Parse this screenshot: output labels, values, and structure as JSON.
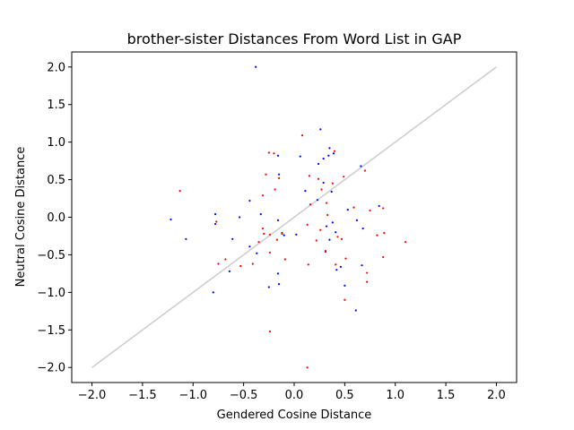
{
  "chart_data": {
    "type": "scatter",
    "title": "brother-sister Distances From Word List in GAP",
    "xlabel": "Gendered Cosine Distance",
    "ylabel": "Neutral Cosine Distance",
    "xlim": [
      -2.2,
      2.2
    ],
    "ylim": [
      -2.2,
      2.2
    ],
    "xticks": [
      "−2.0",
      "−1.5",
      "−1.0",
      "−0.5",
      "0.0",
      "0.5",
      "1.0",
      "1.5",
      "2.0"
    ],
    "yticks": [
      "−2.0",
      "−1.5",
      "−1.0",
      "−0.5",
      "0.0",
      "0.5",
      "1.0",
      "1.5",
      "2.0"
    ],
    "grid": false,
    "reference_line": {
      "x": [
        -2.0,
        2.0
      ],
      "y": [
        -2.0,
        2.0
      ],
      "color": "#cccccc"
    },
    "series": [
      {
        "color": "#0000ff",
        "points": [
          [
            -0.38,
            2.0
          ],
          [
            0.26,
            1.17
          ],
          [
            0.35,
            0.92
          ],
          [
            0.39,
            0.85
          ],
          [
            0.29,
            0.78
          ],
          [
            0.24,
            0.71
          ],
          [
            0.34,
            0.82
          ],
          [
            0.66,
            0.68
          ],
          [
            0.06,
            0.81
          ],
          [
            -0.16,
            0.82
          ],
          [
            -0.15,
            0.57
          ],
          [
            0.29,
            0.46
          ],
          [
            0.11,
            0.35
          ],
          [
            0.37,
            0.34
          ],
          [
            0.23,
            0.23
          ],
          [
            0.84,
            0.15
          ],
          [
            -0.33,
            0.04
          ],
          [
            -1.22,
            -0.03
          ],
          [
            -0.78,
            -0.09
          ],
          [
            -0.54,
            0.0
          ],
          [
            -0.16,
            -0.04
          ],
          [
            -1.07,
            -0.29
          ],
          [
            -0.61,
            -0.29
          ],
          [
            -0.78,
            0.04
          ],
          [
            -0.44,
            0.22
          ],
          [
            0.62,
            -0.04
          ],
          [
            0.68,
            -0.15
          ],
          [
            0.53,
            0.1
          ],
          [
            0.32,
            -0.12
          ],
          [
            0.38,
            -0.07
          ],
          [
            0.41,
            -0.2
          ],
          [
            0.35,
            -0.3
          ],
          [
            0.02,
            -0.23
          ],
          [
            -0.12,
            -0.21
          ],
          [
            -0.1,
            -0.24
          ],
          [
            -0.44,
            -0.39
          ],
          [
            -0.37,
            -0.48
          ],
          [
            -0.64,
            -0.72
          ],
          [
            -0.8,
            -1.0
          ],
          [
            -0.16,
            -0.75
          ],
          [
            -0.15,
            -0.89
          ],
          [
            -0.25,
            -0.93
          ],
          [
            0.46,
            -0.66
          ],
          [
            0.42,
            -0.7
          ],
          [
            0.5,
            -0.91
          ],
          [
            0.31,
            -0.45
          ],
          [
            0.67,
            -0.64
          ],
          [
            0.61,
            -1.24
          ]
        ]
      },
      {
        "color": "#ff0000",
        "points": [
          [
            -1.13,
            0.35
          ],
          [
            0.08,
            1.09
          ],
          [
            -0.25,
            0.86
          ],
          [
            -0.2,
            0.85
          ],
          [
            0.4,
            0.88
          ],
          [
            0.7,
            0.62
          ],
          [
            -0.28,
            0.57
          ],
          [
            -0.15,
            0.52
          ],
          [
            0.15,
            0.55
          ],
          [
            0.24,
            0.51
          ],
          [
            0.49,
            0.54
          ],
          [
            0.38,
            0.45
          ],
          [
            -0.19,
            0.37
          ],
          [
            0.27,
            0.37
          ],
          [
            -0.31,
            0.29
          ],
          [
            0.16,
            0.17
          ],
          [
            0.32,
            0.19
          ],
          [
            0.59,
            0.13
          ],
          [
            0.75,
            0.09
          ],
          [
            0.88,
            0.12
          ],
          [
            -0.31,
            -0.15
          ],
          [
            -0.24,
            -0.23
          ],
          [
            -0.3,
            -0.22
          ],
          [
            0.13,
            -0.1
          ],
          [
            0.33,
            0.03
          ],
          [
            -0.77,
            -0.06
          ],
          [
            -0.12,
            -0.22
          ],
          [
            0.26,
            -0.17
          ],
          [
            0.43,
            -0.26
          ],
          [
            0.47,
            -0.29
          ],
          [
            0.82,
            -0.24
          ],
          [
            0.89,
            -0.21
          ],
          [
            1.1,
            -0.33
          ],
          [
            -0.35,
            -0.33
          ],
          [
            -0.17,
            -0.3
          ],
          [
            0.22,
            -0.31
          ],
          [
            0.31,
            -0.46
          ],
          [
            0.51,
            -0.55
          ],
          [
            0.72,
            -0.74
          ],
          [
            0.72,
            -0.86
          ],
          [
            0.88,
            -0.53
          ],
          [
            -0.24,
            -0.47
          ],
          [
            -0.68,
            -0.56
          ],
          [
            -0.75,
            -0.62
          ],
          [
            -0.53,
            -0.65
          ],
          [
            -0.41,
            -0.62
          ],
          [
            -0.09,
            -0.56
          ],
          [
            0.14,
            -0.63
          ],
          [
            0.41,
            -0.63
          ],
          [
            0.5,
            -1.1
          ],
          [
            -0.24,
            -1.52
          ],
          [
            0.13,
            -2.0
          ]
        ]
      }
    ]
  }
}
